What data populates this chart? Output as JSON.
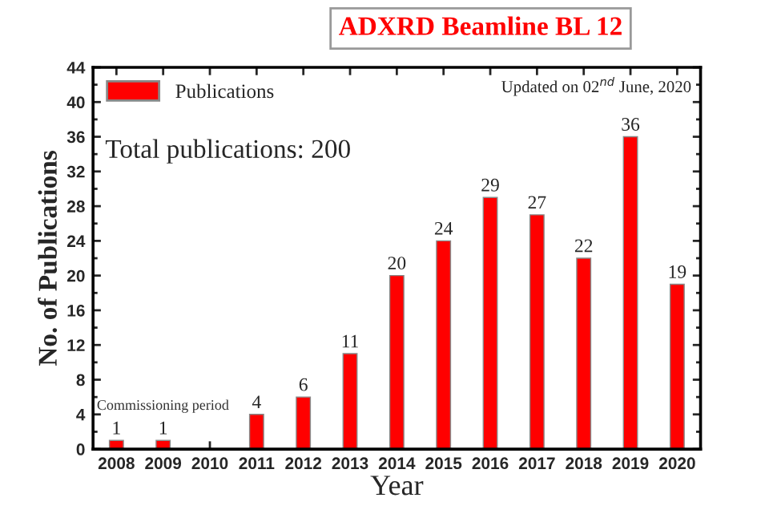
{
  "chart_data": {
    "type": "bar",
    "title": "ADXRD Beamline BL 12",
    "xlabel": "Year",
    "ylabel": "No. of Publications",
    "categories": [
      "2008",
      "2009",
      "2010",
      "2011",
      "2012",
      "2013",
      "2014",
      "2015",
      "2016",
      "2017",
      "2018",
      "2019",
      "2020"
    ],
    "series": [
      {
        "name": "Publications",
        "color": "#ff0000",
        "values": [
          1,
          1,
          null,
          4,
          6,
          11,
          20,
          24,
          29,
          27,
          22,
          36,
          19
        ]
      }
    ],
    "data_labels": true,
    "ylim": [
      0,
      44
    ],
    "yticks": [
      0,
      4,
      8,
      12,
      16,
      20,
      24,
      28,
      32,
      36,
      40,
      44
    ],
    "legend": "top left",
    "grid": false,
    "annotations": [
      "Total publications: 200",
      "Updated on 02$^{nd}$ June, 2020",
      "Commissioning period"
    ]
  }
}
